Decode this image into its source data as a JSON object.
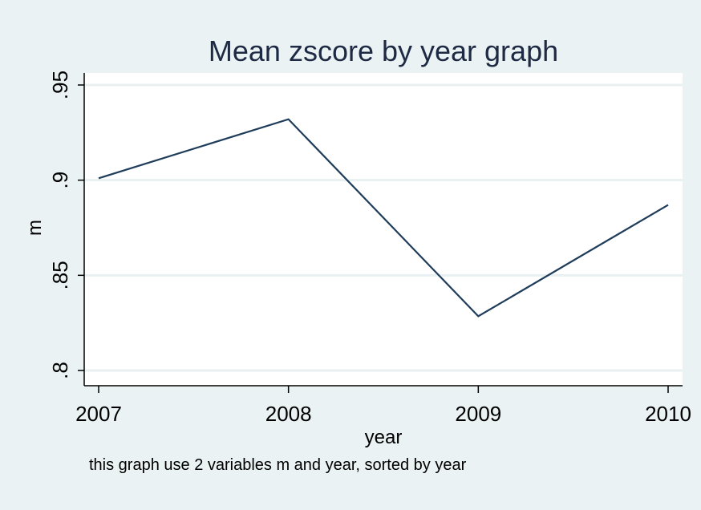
{
  "chart_data": {
    "type": "line",
    "title": "Mean zscore by year graph",
    "xlabel": "year",
    "ylabel": "m",
    "note": "this graph use 2 variables m and year, sorted by year",
    "x": [
      2007,
      2008,
      2009,
      2010
    ],
    "x_tick_labels": [
      "2007",
      "2008",
      "2009",
      "2010"
    ],
    "series": [
      {
        "values": [
          0.901,
          0.932,
          0.8285,
          0.887
        ]
      }
    ],
    "y_ticks": [
      0.8,
      0.85,
      0.9,
      0.95
    ],
    "y_tick_labels": [
      ".8",
      ".85",
      ".9",
      ".95"
    ],
    "xlim": [
      2007,
      2010
    ],
    "ylim": [
      0.8,
      0.95
    ],
    "grid": true,
    "colors": {
      "background": "#eaf2f3",
      "plot_background": "#ffffff",
      "gridline": "#e8f0f1",
      "line": "#1f3d5a",
      "title": "#1e2a44"
    }
  }
}
